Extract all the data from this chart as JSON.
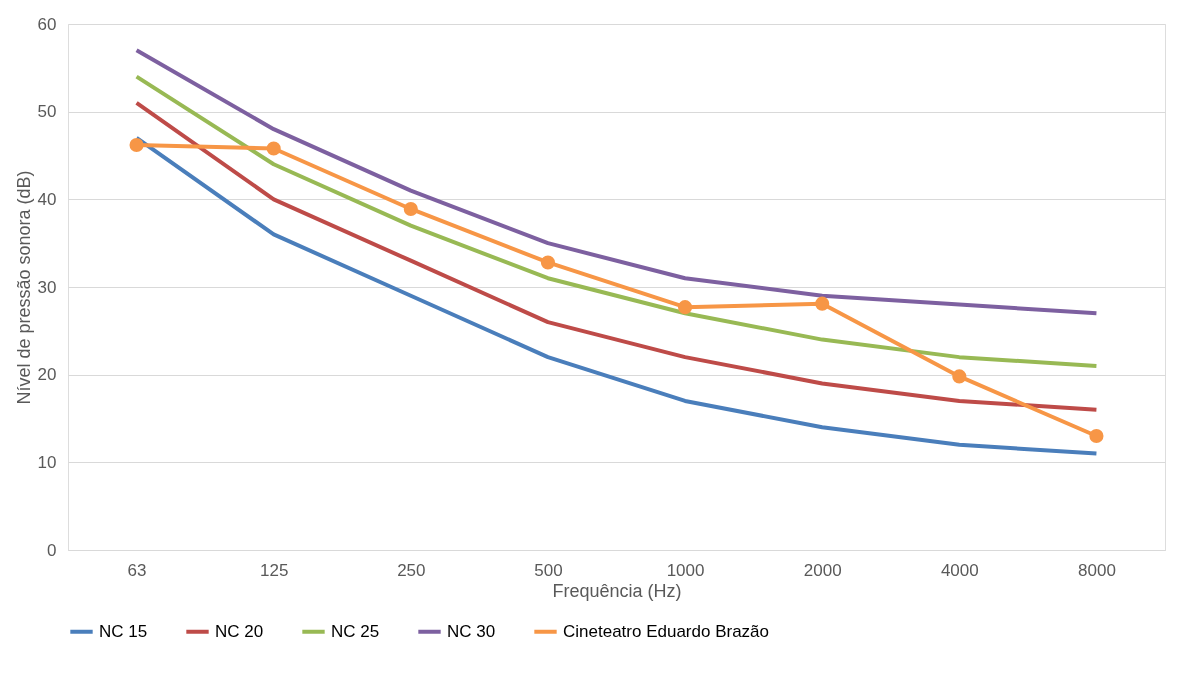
{
  "chart_data": {
    "type": "line",
    "xlabel": "Frequência (Hz)",
    "ylabel": "Nível de pressão sonora (dB)",
    "categories": [
      "63",
      "125",
      "250",
      "500",
      "1000",
      "2000",
      "4000",
      "8000"
    ],
    "ylim": [
      0,
      60
    ],
    "yticks": [
      0,
      10,
      20,
      30,
      40,
      50,
      60
    ],
    "grid": "y",
    "legend": "bottom",
    "series": [
      {
        "name": "NC 15",
        "color": "#4a7ebb",
        "values": [
          47,
          36,
          29,
          22,
          17,
          14,
          12,
          11
        ]
      },
      {
        "name": "NC 20",
        "color": "#be4b48",
        "values": [
          51,
          40,
          33,
          26,
          22,
          19,
          17,
          16
        ]
      },
      {
        "name": "NC 25",
        "color": "#98b954",
        "values": [
          54,
          44,
          37,
          31,
          27,
          24,
          22,
          21
        ]
      },
      {
        "name": "NC 30",
        "color": "#7d60a0",
        "values": [
          57,
          48,
          41,
          35,
          31,
          29,
          28,
          27
        ]
      },
      {
        "name": "Cineteatro Eduardo Brazão",
        "color": "#f79646",
        "marker": "circle",
        "values": [
          46.2,
          45.8,
          38.9,
          32.8,
          27.7,
          28.1,
          19.8,
          13.0
        ]
      }
    ]
  }
}
